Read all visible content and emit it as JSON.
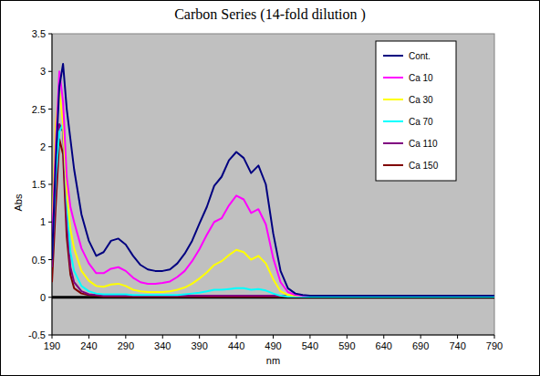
{
  "chart_data": {
    "type": "line",
    "title": "Carbon Series (14-fold dilution )",
    "x_label": "nm",
    "y_label": "Abs",
    "x": [
      190,
      195,
      200,
      205,
      210,
      215,
      220,
      230,
      240,
      250,
      260,
      270,
      280,
      290,
      300,
      310,
      320,
      330,
      340,
      350,
      360,
      370,
      380,
      390,
      400,
      410,
      420,
      430,
      440,
      450,
      460,
      470,
      480,
      490,
      500,
      510,
      520,
      530,
      540,
      590,
      640,
      690,
      740,
      790
    ],
    "series": [
      {
        "name": "Cont.",
        "color": "#000080",
        "values": [
          0.5,
          1.8,
          2.8,
          3.1,
          2.5,
          2.1,
          1.7,
          1.1,
          0.75,
          0.55,
          0.6,
          0.75,
          0.78,
          0.7,
          0.55,
          0.43,
          0.37,
          0.35,
          0.35,
          0.37,
          0.45,
          0.58,
          0.75,
          0.98,
          1.2,
          1.48,
          1.6,
          1.82,
          1.93,
          1.85,
          1.65,
          1.75,
          1.5,
          0.85,
          0.35,
          0.12,
          0.05,
          0.03,
          0.02,
          0.02,
          0.02,
          0.02,
          0.02,
          0.02
        ]
      },
      {
        "name": "Ca 10",
        "color": "#FF00FF",
        "values": [
          0.7,
          2.0,
          3.0,
          2.6,
          1.6,
          1.2,
          1.0,
          0.65,
          0.45,
          0.32,
          0.32,
          0.38,
          0.4,
          0.35,
          0.26,
          0.2,
          0.18,
          0.18,
          0.19,
          0.21,
          0.27,
          0.35,
          0.48,
          0.64,
          0.83,
          1.0,
          1.05,
          1.22,
          1.35,
          1.3,
          1.12,
          1.17,
          0.97,
          0.52,
          0.2,
          0.07,
          0.03,
          0.02,
          0.02,
          0.02,
          0.02,
          0.02,
          0.02,
          0.02
        ]
      },
      {
        "name": "Ca 30",
        "color": "#FFFF00",
        "values": [
          0.8,
          2.3,
          2.75,
          2.3,
          1.4,
          0.9,
          0.65,
          0.35,
          0.22,
          0.15,
          0.14,
          0.17,
          0.18,
          0.15,
          0.1,
          0.08,
          0.07,
          0.07,
          0.07,
          0.08,
          0.1,
          0.13,
          0.18,
          0.25,
          0.33,
          0.43,
          0.48,
          0.56,
          0.63,
          0.6,
          0.5,
          0.55,
          0.45,
          0.24,
          0.08,
          0.03,
          0.02,
          0.02,
          0.02,
          0.02,
          0.02,
          0.02,
          0.02,
          0.02
        ]
      },
      {
        "name": "Ca 70",
        "color": "#00FFFF",
        "values": [
          0.6,
          1.6,
          2.2,
          2.3,
          1.3,
          0.6,
          0.35,
          0.15,
          0.08,
          0.05,
          0.04,
          0.04,
          0.04,
          0.04,
          0.03,
          0.03,
          0.03,
          0.03,
          0.03,
          0.03,
          0.03,
          0.04,
          0.05,
          0.06,
          0.08,
          0.1,
          0.1,
          0.11,
          0.12,
          0.12,
          0.1,
          0.11,
          0.09,
          0.05,
          0.02,
          0.01,
          0.01,
          0.01,
          0.01,
          0.01,
          0.01,
          0.01,
          0.01,
          0.01
        ]
      },
      {
        "name": "Ca 110",
        "color": "#800080",
        "values": [
          0.4,
          1.5,
          2.3,
          2.2,
          1.0,
          0.4,
          0.2,
          0.08,
          0.04,
          0.03,
          0.02,
          0.02,
          0.02,
          0.02,
          0.02,
          0.02,
          0.02,
          0.02,
          0.02,
          0.02,
          0.02,
          0.02,
          0.02,
          0.02,
          0.02,
          0.02,
          0.02,
          0.02,
          0.02,
          0.02,
          0.02,
          0.02,
          0.02,
          0.02,
          0.02,
          0.02,
          0.02,
          0.02,
          0.02,
          0.02,
          0.02,
          0.02,
          0.02,
          0.02
        ]
      },
      {
        "name": "Ca 150",
        "color": "#800000",
        "values": [
          0.2,
          1.2,
          2.1,
          1.9,
          0.8,
          0.3,
          0.12,
          0.05,
          0.03,
          0.02,
          0.01,
          0.01,
          0.01,
          0.01,
          0.01,
          0.01,
          0.01,
          0.01,
          0.01,
          0.01,
          0.01,
          0.01,
          0.01,
          0.01,
          0.01,
          0.01,
          0.01,
          0.01,
          0.01,
          0.01,
          0.01,
          0.01,
          0.01,
          0.01,
          0.01,
          0.01,
          0.01,
          0.01,
          0.01,
          0.01,
          0.01,
          0.01,
          0.01,
          0.01
        ]
      }
    ],
    "xlim": [
      190,
      790
    ],
    "xticks": [
      190,
      240,
      290,
      340,
      390,
      440,
      490,
      540,
      590,
      640,
      690,
      740,
      790
    ],
    "ylim": [
      -0.5,
      3.5
    ],
    "yticks": [
      -0.5,
      0,
      0.5,
      1,
      1.5,
      2,
      2.5,
      3,
      3.5
    ],
    "grid": false,
    "legend": "top-right"
  }
}
